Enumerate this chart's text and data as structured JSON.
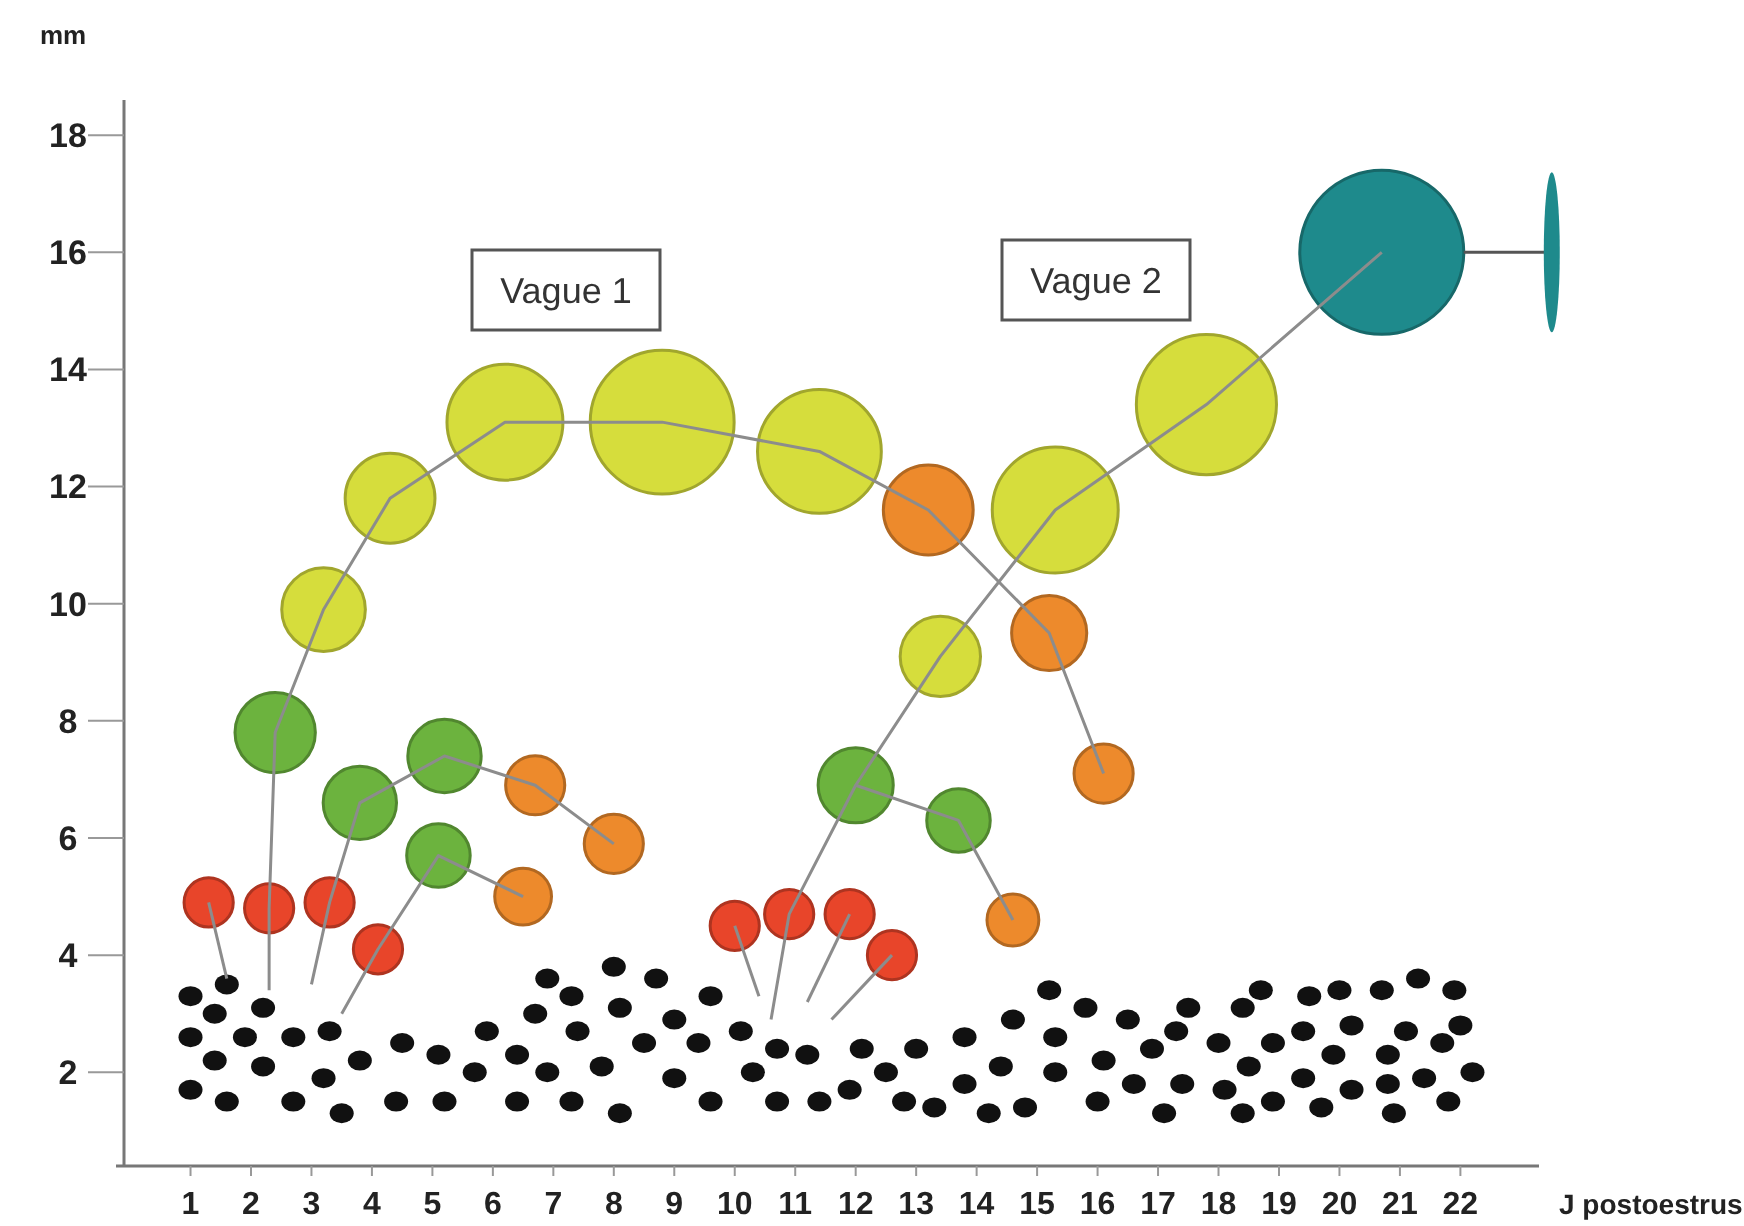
{
  "chart_data": {
    "type": "bubble",
    "xlabel": "J postoestrus",
    "ylabel": "mm",
    "xlim": [
      -0.1,
      23.3
    ],
    "ylim": [
      0.4,
      18.6
    ],
    "xticks": [
      1,
      2,
      3,
      4,
      5,
      6,
      7,
      8,
      9,
      10,
      11,
      12,
      13,
      14,
      15,
      16,
      17,
      18,
      19,
      20,
      21,
      22
    ],
    "yticks": [
      2,
      4,
      6,
      8,
      10,
      12,
      14,
      16,
      18
    ],
    "annotations": [
      "Vague 1",
      "Vague 2"
    ],
    "series": [
      {
        "type": "line",
        "color": "#8c8c8c",
        "marker": "none",
        "line_style": "solid",
        "x": [
          1.6,
          1.3
        ],
        "values": [
          3.6,
          4.9
        ]
      },
      {
        "type": "line",
        "color": "#8c8c8c",
        "marker": "none",
        "line_style": "solid",
        "x": [
          2.3,
          2.3,
          2.4,
          3.2,
          4.3,
          6.2,
          8.8,
          11.4,
          13.2,
          15.2,
          16.1
        ],
        "values": [
          3.4,
          4.8,
          7.8,
          9.9,
          11.8,
          13.1,
          13.1,
          12.6,
          11.6,
          9.5,
          7.1
        ]
      },
      {
        "type": "line",
        "color": "#8c8c8c",
        "marker": "none",
        "line_style": "solid",
        "x": [
          3.0,
          3.3,
          3.8,
          5.2,
          6.7,
          8.0
        ],
        "values": [
          3.5,
          4.9,
          6.6,
          7.4,
          6.9,
          5.9
        ]
      },
      {
        "type": "line",
        "color": "#8c8c8c",
        "marker": "none",
        "line_style": "solid",
        "x": [
          3.5,
          4.1,
          5.1,
          6.5
        ],
        "values": [
          3.0,
          4.1,
          5.7,
          5.0
        ]
      },
      {
        "type": "line",
        "color": "#8c8c8c",
        "marker": "none",
        "line_style": "solid",
        "x": [
          10.4,
          10.0
        ],
        "values": [
          3.3,
          4.5
        ]
      },
      {
        "type": "line",
        "color": "#8c8c8c",
        "marker": "none",
        "line_style": "solid",
        "x": [
          10.6,
          10.9,
          12.0,
          13.4,
          15.3,
          17.8,
          20.7
        ],
        "values": [
          2.9,
          4.7,
          6.9,
          9.1,
          11.6,
          13.4,
          16.0
        ]
      },
      {
        "type": "line",
        "color": "#8c8c8c",
        "marker": "none",
        "line_style": "solid",
        "x": [
          12.0,
          13.7,
          14.6
        ],
        "values": [
          6.9,
          6.3,
          4.6
        ]
      },
      {
        "type": "line",
        "color": "#8c8c8c",
        "marker": "none",
        "line_style": "solid",
        "x": [
          11.2,
          11.9
        ],
        "values": [
          3.2,
          4.7
        ]
      },
      {
        "type": "line",
        "color": "#8c8c8c",
        "marker": "none",
        "line_style": "solid",
        "x": [
          11.6,
          12.6
        ],
        "values": [
          2.9,
          4.0
        ]
      },
      {
        "type": "scatter",
        "color": "#111111",
        "marker": "circle",
        "x": [
          1.0,
          1.6,
          1.4,
          2.2,
          1.0,
          1.9,
          2.7,
          3.3,
          1.4,
          2.2,
          3.8,
          4.5,
          5.1,
          5.9,
          6.4,
          6.7,
          6.9,
          7.3,
          7.4,
          8.1,
          8.0,
          8.7,
          9.0,
          8.5,
          9.6,
          9.4,
          10.1,
          10.7,
          11.2,
          10.3,
          1.0,
          1.6,
          2.7,
          3.2,
          3.5,
          4.4,
          5.2,
          5.7,
          6.4,
          6.9,
          7.3,
          7.8,
          8.1,
          9.0,
          9.6,
          10.7,
          11.4,
          11.9,
          12.1,
          12.5,
          13.0,
          12.8,
          13.3,
          13.8,
          13.8,
          14.2,
          14.6,
          14.4,
          14.8,
          15.2,
          15.3,
          15.3,
          15.8,
          16.1,
          16.0,
          16.5,
          16.6,
          16.9,
          17.3,
          17.5,
          17.4,
          17.1,
          18.4,
          18.7,
          18.0,
          18.5,
          18.1,
          18.4,
          18.9,
          18.9,
          19.5,
          19.4,
          19.9,
          19.4,
          19.7,
          20.0,
          20.2,
          20.2,
          20.7,
          20.8,
          20.8,
          20.9,
          21.1,
          21.3,
          21.4,
          21.7,
          21.9,
          22.0,
          21.8,
          22.2
        ],
        "values": [
          3.3,
          3.5,
          3.0,
          3.1,
          2.6,
          2.6,
          2.6,
          2.7,
          2.2,
          2.1,
          2.2,
          2.5,
          2.3,
          2.7,
          2.3,
          3.0,
          3.6,
          3.3,
          2.7,
          3.1,
          3.8,
          3.6,
          2.9,
          2.5,
          3.3,
          2.5,
          2.7,
          2.4,
          2.3,
          2.0,
          1.7,
          1.5,
          1.5,
          1.9,
          1.3,
          1.5,
          1.5,
          2.0,
          1.5,
          2.0,
          1.5,
          2.1,
          1.3,
          1.9,
          1.5,
          1.5,
          1.5,
          1.7,
          2.4,
          2.0,
          2.4,
          1.5,
          1.4,
          2.6,
          1.8,
          1.3,
          2.9,
          2.1,
          1.4,
          3.4,
          2.6,
          2.0,
          3.1,
          2.2,
          1.5,
          2.9,
          1.8,
          2.4,
          2.7,
          3.1,
          1.8,
          1.3,
          3.1,
          3.4,
          2.5,
          2.1,
          1.7,
          1.3,
          2.5,
          1.5,
          3.3,
          2.7,
          2.3,
          1.9,
          1.4,
          3.4,
          2.8,
          1.7,
          3.4,
          2.3,
          1.8,
          1.3,
          2.7,
          3.6,
          1.9,
          2.5,
          3.4,
          2.8,
          1.5,
          2.0
        ]
      },
      {
        "color": "#d6dd3c",
        "x": [
          3.2,
          4.3,
          6.2,
          8.8,
          11.4,
          13.4,
          15.3,
          17.8
        ],
        "values": [
          9.9,
          11.8,
          13.1,
          13.1,
          12.6,
          9.1,
          11.6,
          13.4
        ],
        "sizes": [
          0.26,
          0.3,
          0.5,
          0.77,
          0.57,
          0.24,
          0.59,
          0.73
        ]
      },
      {
        "color": "#6cb33e",
        "x": [
          2.4,
          3.8,
          5.2,
          5.1,
          12.0,
          13.7
        ],
        "values": [
          7.8,
          6.6,
          7.4,
          5.7,
          6.9,
          6.3
        ],
        "sizes": [
          0.24,
          0.2,
          0.2,
          0.15,
          0.21,
          0.15
        ]
      },
      {
        "color": "#ed8a2c",
        "x": [
          6.7,
          8.0,
          6.5,
          13.2,
          15.2,
          16.1,
          14.6
        ],
        "values": [
          6.9,
          5.9,
          5.0,
          11.6,
          9.5,
          7.1,
          4.6
        ],
        "sizes": [
          0.13,
          0.13,
          0.12,
          0.3,
          0.21,
          0.13,
          0.1
        ]
      },
      {
        "color": "#e8452a",
        "x": [
          1.3,
          2.3,
          3.3,
          4.1,
          10.0,
          10.9,
          11.9,
          12.6
        ],
        "values": [
          4.9,
          4.8,
          4.9,
          4.1,
          4.5,
          4.7,
          4.7,
          4.0
        ],
        "sizes": [
          0.09,
          0.09,
          0.09,
          0.09,
          0.09,
          0.09,
          0.09,
          0.09
        ]
      },
      {
        "color": "#1e8a8c",
        "x": [
          20.7
        ],
        "values": [
          16.0
        ],
        "sizes": [
          1
        ]
      }
    ]
  }
}
